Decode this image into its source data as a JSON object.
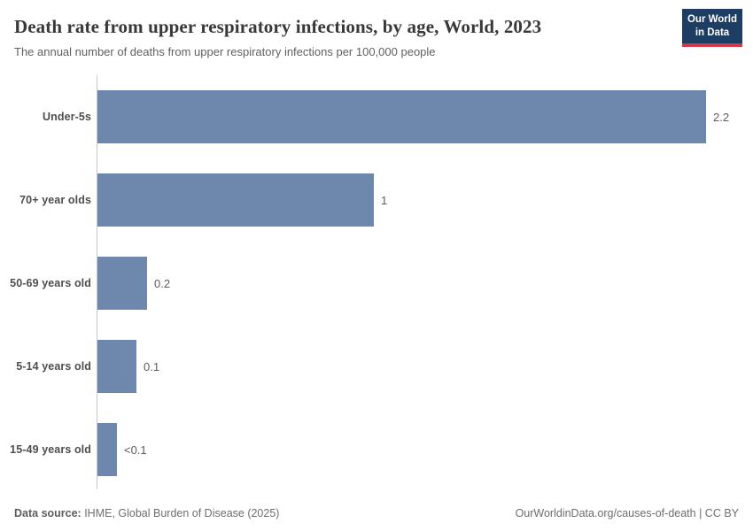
{
  "header": {
    "title": "Death rate from upper respiratory infections, by age, World, 2023",
    "subtitle": "The annual number of deaths from upper respiratory infections per 100,000 people",
    "logo": {
      "line1": "Our World",
      "line2": "in Data",
      "bg_color": "#1d3d63",
      "accent_color": "#d0394a"
    }
  },
  "chart_data": {
    "type": "bar",
    "orientation": "horizontal",
    "title": "Death rate from upper respiratory infections, by age, World, 2023",
    "categories": [
      "Under-5s",
      "70+ year olds",
      "50-69 years old",
      "5-14 years old",
      "15-49 years old"
    ],
    "values": [
      2.2,
      1.0,
      0.18,
      0.14,
      0.07
    ],
    "value_labels": [
      "2.2",
      "1",
      "0.2",
      "0.1",
      "<0.1"
    ],
    "xlim": [
      0,
      2.2
    ],
    "bar_color": "#6e87ad",
    "grid": false,
    "legend": "none"
  },
  "footer": {
    "source_label": "Data source:",
    "source_text": " IHME, Global Burden of Disease (2025)",
    "link_text": "OurWorldinData.org/causes-of-death | CC BY"
  }
}
